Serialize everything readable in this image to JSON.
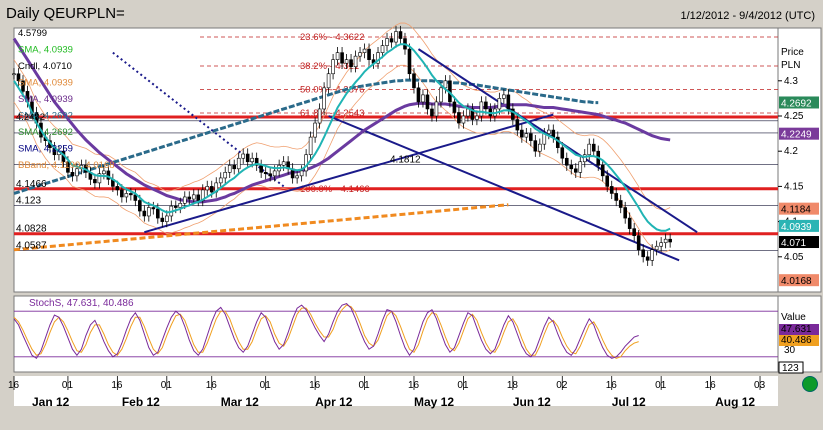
{
  "header": {
    "title": "Daily QEURPLN=",
    "date_range": "1/12/2012 - 9/4/2012 (UTC)"
  },
  "chart_data": {
    "type": "line",
    "price_panel": {
      "axis_title": [
        "Price",
        "PLN"
      ],
      "ylim": [
        4.0,
        4.375
      ],
      "y_ticks": [
        4.05,
        4.1,
        4.15,
        4.2,
        4.25,
        4.3
      ],
      "y_tick_labels": [
        "4.05",
        "4.1",
        "4.15",
        "4.2",
        "4.25",
        "4.3"
      ],
      "legend": [
        {
          "label": "4.5799",
          "color": "#000000"
        },
        {
          "label": "SMA, 4.0939",
          "color": "#22bb22"
        },
        {
          "label": "Cndl, 4.0710",
          "color": "#000000"
        },
        {
          "label": "SMA, 4.0939",
          "color": "#e08a3a"
        },
        {
          "label": "SMA, 4.0939",
          "color": "#6a2a8a"
        },
        {
          "label": "SMA, 4.2692",
          "color": "#2a6a8a"
        },
        {
          "label": "SMA, 4.2692",
          "color": "#2a8a2a"
        },
        {
          "label": "SMA, 4.2259",
          "color": "#000080"
        },
        {
          "label": "BBand, 4.1190, 4.0168",
          "color": "#e08a3a"
        }
      ],
      "horizontal_levels": [
        {
          "label": "4.1466",
          "value": 4.1466
        },
        {
          "label": "4.123",
          "value": 4.123
        },
        {
          "label": "4.0828",
          "value": 4.0828
        },
        {
          "label": "4.0587",
          "value": 4.0587
        },
        {
          "label": "4.2432",
          "value": 4.2432
        },
        {
          "label": "4.2259",
          "value": 4.2259
        },
        {
          "label": "4.1812",
          "value": 4.1812
        }
      ],
      "fib_levels": [
        {
          "label": "23.6% - 4.3622",
          "value": 4.3622
        },
        {
          "label": "38.2% - 4.321",
          "value": 4.321
        },
        {
          "label": "50.0% - 4.2876",
          "value": 4.2876
        },
        {
          "label": "61.8% - 4.2543",
          "value": 4.2543
        },
        {
          "label": "100.0% - 4.1466",
          "value": 4.1466
        }
      ],
      "red_support_lines": [
        4.2485,
        4.1466,
        4.0828
      ],
      "right_labels": [
        {
          "label": "4.2692",
          "value": 4.2692,
          "color": "#2a8a5a"
        },
        {
          "label": "4.2249",
          "value": 4.2249,
          "color": "#7a3a9a"
        },
        {
          "label": "4.1184",
          "value": 4.1184,
          "color": "#f08a6a"
        },
        {
          "label": "4.0939",
          "value": 4.0939,
          "color": "#2ab4b4"
        },
        {
          "label": "4.071",
          "value": 4.071,
          "color": "#000000"
        },
        {
          "label": "4.0168",
          "value": 4.0168,
          "color": "#f08a6a"
        }
      ],
      "close": [
        4.31,
        4.3,
        4.285,
        4.27,
        4.255,
        4.24,
        4.22,
        4.215,
        4.205,
        4.195,
        4.2,
        4.185,
        4.17,
        4.165,
        4.175,
        4.18,
        4.17,
        4.16,
        4.155,
        4.168,
        4.172,
        4.16,
        4.15,
        4.145,
        4.135,
        4.14,
        4.138,
        4.13,
        4.115,
        4.108,
        4.12,
        4.118,
        4.105,
        4.1,
        4.108,
        4.122,
        4.12,
        4.126,
        4.135,
        4.132,
        4.138,
        4.13,
        4.145,
        4.15,
        4.142,
        4.155,
        4.162,
        4.17,
        4.18,
        4.175,
        4.19,
        4.196,
        4.185,
        4.19,
        4.18,
        4.17,
        4.168,
        4.165,
        4.172,
        4.18,
        4.185,
        4.175,
        4.162,
        4.165,
        4.172,
        4.195,
        4.22,
        4.24,
        4.26,
        4.29,
        4.31,
        4.33,
        4.34,
        4.325,
        4.33,
        4.32,
        4.335,
        4.34,
        4.345,
        4.33,
        4.325,
        4.34,
        4.35,
        4.36,
        4.355,
        4.37,
        4.36,
        4.345,
        4.31,
        4.29,
        4.27,
        4.28,
        4.26,
        4.25,
        4.27,
        4.29,
        4.3,
        4.27,
        4.255,
        4.24,
        4.25,
        4.26,
        4.245,
        4.25,
        4.27,
        4.26,
        4.25,
        4.26,
        4.275,
        4.28,
        4.26,
        4.245,
        4.23,
        4.22,
        4.225,
        4.215,
        4.2,
        4.21,
        4.225,
        4.23,
        4.22,
        4.205,
        4.19,
        4.18,
        4.175,
        4.17,
        4.185,
        4.195,
        4.21,
        4.2,
        4.18,
        4.165,
        4.15,
        4.14,
        4.13,
        4.12,
        4.105,
        4.09,
        4.08,
        4.06,
        4.05,
        4.045,
        4.06,
        4.065,
        4.07,
        4.075,
        4.071
      ],
      "sma_fast": [
        4.3,
        4.29,
        4.28,
        4.27,
        4.255,
        4.24,
        4.23,
        4.22,
        4.212,
        4.205,
        4.2,
        4.195,
        4.188,
        4.18,
        4.178,
        4.176,
        4.174,
        4.17,
        4.166,
        4.165,
        4.165,
        4.164,
        4.16,
        4.156,
        4.15,
        4.146,
        4.143,
        4.14,
        4.134,
        4.128,
        4.125,
        4.123,
        4.12,
        4.116,
        4.113,
        4.114,
        4.116,
        4.118,
        4.121,
        4.123,
        4.126,
        4.128,
        4.131,
        4.135,
        4.139,
        4.143,
        4.148,
        4.153,
        4.158,
        4.162,
        4.168,
        4.173,
        4.177,
        4.18,
        4.182,
        4.181,
        4.179,
        4.177,
        4.176,
        4.176,
        4.177,
        4.176,
        4.174,
        4.173,
        4.174,
        4.179,
        4.187,
        4.196,
        4.207,
        4.22,
        4.234,
        4.248,
        4.262,
        4.272,
        4.282,
        4.29,
        4.298,
        4.305,
        4.313,
        4.319,
        4.324,
        4.329,
        4.334,
        4.34,
        4.344,
        4.349,
        4.352,
        4.352,
        4.349,
        4.343,
        4.335,
        4.327,
        4.318,
        4.308,
        4.3,
        4.294,
        4.288,
        4.283,
        4.276,
        4.269,
        4.264,
        4.261,
        4.258,
        4.256,
        4.256,
        4.255,
        4.254,
        4.254,
        4.256,
        4.258,
        4.258,
        4.256,
        4.252,
        4.247,
        4.243,
        4.238,
        4.232,
        4.228,
        4.225,
        4.222,
        4.219,
        4.215,
        4.21,
        4.205,
        4.2,
        4.195,
        4.193,
        4.192,
        4.193,
        4.193,
        4.191,
        4.187,
        4.181,
        4.174,
        4.166,
        4.158,
        4.149,
        4.14,
        4.13,
        4.12,
        4.109,
        4.1,
        4.094,
        4.089,
        4.087,
        4.087,
        4.09
      ],
      "sma_slow": [
        4.36,
        4.35,
        4.34,
        4.33,
        4.32,
        4.31,
        4.3,
        4.29,
        4.28,
        4.27,
        4.262,
        4.254,
        4.246,
        4.238,
        4.23,
        4.223,
        4.216,
        4.21,
        4.204,
        4.198,
        4.193,
        4.188,
        4.183,
        4.178,
        4.173,
        4.168,
        4.164,
        4.16,
        4.156,
        4.152,
        4.149,
        4.146,
        4.143,
        4.14,
        4.137,
        4.135,
        4.133,
        4.131,
        4.13,
        4.129,
        4.128,
        4.128,
        4.128,
        4.129,
        4.13,
        4.131,
        4.133,
        4.135,
        4.138,
        4.14,
        4.143,
        4.146,
        4.149,
        4.152,
        4.154,
        4.156,
        4.158,
        4.16,
        4.162,
        4.164,
        4.166,
        4.168,
        4.17,
        4.171,
        4.172,
        4.174,
        4.176,
        4.179,
        4.182,
        4.186,
        4.19,
        4.195,
        4.2,
        4.205,
        4.21,
        4.215,
        4.22,
        4.225,
        4.23,
        4.234,
        4.238,
        4.242,
        4.246,
        4.25,
        4.254,
        4.258,
        4.261,
        4.264,
        4.266,
        4.267,
        4.268,
        4.268,
        4.268,
        4.267,
        4.267,
        4.267,
        4.267,
        4.266,
        4.265,
        4.264,
        4.263,
        4.263,
        4.262,
        4.262,
        4.262,
        4.262,
        4.262,
        4.263,
        4.264,
        4.265,
        4.266,
        4.266,
        4.266,
        4.266,
        4.266,
        4.265,
        4.264,
        4.263,
        4.262,
        4.262,
        4.262,
        4.261,
        4.26,
        4.259,
        4.258,
        4.257,
        4.256,
        4.255,
        4.254,
        4.253,
        4.252,
        4.25,
        4.248,
        4.246,
        4.244,
        4.242,
        4.24,
        4.237,
        4.234,
        4.231,
        4.228,
        4.225,
        4.222,
        4.22,
        4.218,
        4.217,
        4.216
      ],
      "sma_long": [
        4.14,
        4.142,
        4.144,
        4.146,
        4.148,
        4.15,
        4.152,
        4.154,
        4.156,
        4.158,
        4.16,
        4.162,
        4.164,
        4.166,
        4.168,
        4.17,
        4.172,
        4.174,
        4.176,
        4.178,
        4.18,
        4.182,
        4.184,
        4.186,
        4.188,
        4.19,
        4.192,
        4.194,
        4.196,
        4.198,
        4.2,
        4.202,
        4.204,
        4.206,
        4.208,
        4.21,
        4.212,
        4.214,
        4.216,
        4.218,
        4.22,
        4.222,
        4.224,
        4.226,
        4.228,
        4.23,
        4.232,
        4.234,
        4.236,
        4.238,
        4.24,
        4.242,
        4.244,
        4.246,
        4.248,
        4.25,
        4.252,
        4.254,
        4.256,
        4.258,
        4.26,
        4.262,
        4.264,
        4.266,
        4.268,
        4.27,
        4.272,
        4.274,
        4.276,
        4.278,
        4.28,
        4.282,
        4.284,
        4.286,
        4.288,
        4.29,
        4.291,
        4.292,
        4.293,
        4.294,
        4.295,
        4.296,
        4.297,
        4.298,
        4.299,
        4.3,
        4.3,
        4.301,
        4.301,
        4.301,
        4.301,
        4.3,
        4.3,
        4.3,
        4.299,
        4.299,
        4.298,
        4.298,
        4.297,
        4.297,
        4.296,
        4.295,
        4.295,
        4.294,
        4.293,
        4.292,
        4.291,
        4.29,
        4.289,
        4.288,
        4.287,
        4.286,
        4.285,
        4.284,
        4.283,
        4.282,
        4.281,
        4.28,
        4.279,
        4.278,
        4.277,
        4.276,
        4.275,
        4.274,
        4.273,
        4.272,
        4.271,
        4.27,
        4.27,
        4.269,
        4.269
      ],
      "trend_lines": [
        {
          "from": [
            29,
            4.085
          ],
          "to": [
            120,
            4.252
          ],
          "color": "#1a1a8a",
          "style": "solid"
        },
        {
          "from": [
            70,
            4.25
          ],
          "to": [
            148,
            4.045
          ],
          "color": "#1a1a8a",
          "style": "solid"
        },
        {
          "from": [
            90,
            4.345
          ],
          "to": [
            152,
            4.085
          ],
          "color": "#1a1a8a",
          "style": "solid"
        },
        {
          "from": [
            22,
            4.34
          ],
          "to": [
            60,
            4.15
          ],
          "color": "#1a1a8a",
          "style": "dotted"
        },
        {
          "from": [
            0,
            4.06
          ],
          "to": [
            110,
            4.124
          ],
          "color": "#f08a20",
          "style": "dashed"
        }
      ]
    },
    "stoch_panel": {
      "label": "StochS, 47.631, 40.486",
      "axis_title": "Value",
      "ylim": [
        0,
        100
      ],
      "y_tick_labels": [
        "30"
      ],
      "levels": [
        20,
        80
      ],
      "right_labels": [
        {
          "label": "47.631",
          "value": 47.631,
          "color": "#7a2a9a"
        },
        {
          "label": "40.486",
          "value": 40.486,
          "color": "#f0a020"
        }
      ],
      "k": [
        70,
        62,
        48,
        35,
        22,
        18,
        28,
        45,
        62,
        75,
        72,
        60,
        45,
        30,
        22,
        30,
        48,
        62,
        68,
        55,
        40,
        28,
        20,
        24,
        38,
        55,
        70,
        78,
        68,
        50,
        32,
        22,
        26,
        42,
        58,
        72,
        80,
        75,
        60,
        42,
        28,
        22,
        30,
        48,
        66,
        80,
        85,
        76,
        60,
        44,
        32,
        26,
        34,
        50,
        66,
        78,
        72,
        56,
        40,
        30,
        36,
        52,
        70,
        84,
        88,
        82,
        70,
        58,
        48,
        40,
        50,
        66,
        80,
        88,
        90,
        84,
        70,
        54,
        40,
        30,
        34,
        50,
        68,
        82,
        80,
        66,
        48,
        32,
        22,
        30,
        48,
        66,
        78,
        82,
        70,
        52,
        36,
        26,
        32,
        48,
        64,
        78,
        74,
        58,
        42,
        30,
        24,
        30,
        46,
        62,
        74,
        66,
        50,
        34,
        24,
        20,
        28,
        44,
        60,
        72,
        66,
        50,
        36,
        26,
        22,
        30,
        44,
        58,
        70,
        62,
        46,
        32,
        22,
        18,
        20,
        26,
        34,
        40,
        46,
        48
      ],
      "d": [
        72,
        66,
        55,
        42,
        30,
        22,
        24,
        36,
        52,
        66,
        72,
        66,
        54,
        40,
        28,
        26,
        36,
        52,
        62,
        62,
        50,
        36,
        26,
        22,
        30,
        44,
        60,
        72,
        72,
        60,
        44,
        30,
        24,
        32,
        48,
        62,
        74,
        76,
        68,
        52,
        36,
        26,
        26,
        38,
        54,
        70,
        80,
        80,
        70,
        54,
        40,
        30,
        30,
        40,
        56,
        70,
        74,
        66,
        50,
        38,
        34,
        44,
        60,
        76,
        84,
        84,
        76,
        64,
        54,
        46,
        46,
        56,
        72,
        82,
        88,
        86,
        78,
        64,
        48,
        38,
        34,
        42,
        58,
        74,
        80,
        74,
        60,
        44,
        30,
        26,
        36,
        54,
        70,
        78,
        76,
        62,
        46,
        32,
        28,
        38,
        54,
        70,
        76,
        68,
        52,
        38,
        28,
        26,
        36,
        52,
        66,
        70,
        60,
        44,
        30,
        22,
        22,
        34,
        50,
        64,
        68,
        60,
        46,
        34,
        26,
        24,
        34,
        48,
        62,
        66,
        56,
        42,
        30,
        22,
        18,
        20,
        28,
        34,
        38,
        40
      ]
    },
    "x_axis": {
      "day_ticks": [
        "16",
        "01",
        "16",
        "01",
        "16",
        "01",
        "16",
        "01",
        "16",
        "01",
        "18",
        "02",
        "16",
        "01",
        "16",
        "03"
      ],
      "day_tick_index": [
        0,
        12,
        23,
        34,
        44,
        56,
        67,
        78,
        89,
        100,
        111,
        122,
        133,
        144,
        155,
        166
      ],
      "month_labels": [
        "Jan 12",
        "Feb 12",
        "Mar 12",
        "Apr 12",
        "May 12",
        "Jun 12",
        "Jul 12",
        "Aug 12"
      ],
      "month_label_index": [
        4,
        24,
        46,
        67,
        89,
        111,
        133,
        156
      ]
    },
    "stoch_scroll_box": "123"
  }
}
